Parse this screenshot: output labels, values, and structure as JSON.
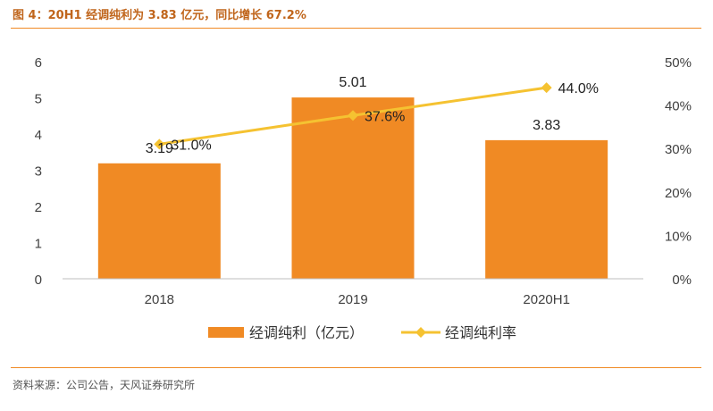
{
  "header": {
    "title": "图 4：20H1 经调纯利为 3.83 亿元，同比增长 67.2%"
  },
  "footer": {
    "source": "资料来源：公司公告，天风证券研究所"
  },
  "colors": {
    "bar": "#f08a24",
    "line": "#f5c231",
    "accent": "#f08a24"
  },
  "chart_data": {
    "type": "bar",
    "categories": [
      "2018",
      "2019",
      "2020H1"
    ],
    "series": [
      {
        "name": "经调纯利（亿元）",
        "type": "bar",
        "axis": "left",
        "values": [
          3.19,
          5.01,
          3.83
        ],
        "labels": [
          "3.19",
          "5.01",
          "3.83"
        ]
      },
      {
        "name": "经调纯利率",
        "type": "line",
        "axis": "right",
        "marker": "diamond",
        "values": [
          31.0,
          37.6,
          44.0
        ],
        "labels": [
          "31.0%",
          "37.6%",
          "44.0%"
        ]
      }
    ],
    "y_left": {
      "ylim": [
        0,
        6
      ],
      "ticks": [
        "0",
        "1",
        "2",
        "3",
        "4",
        "5",
        "6"
      ]
    },
    "y_right": {
      "ylim": [
        0,
        50
      ],
      "ticks": [
        "0%",
        "10%",
        "20%",
        "30%",
        "40%",
        "50%"
      ]
    },
    "legend_position": "bottom",
    "grid": false
  }
}
